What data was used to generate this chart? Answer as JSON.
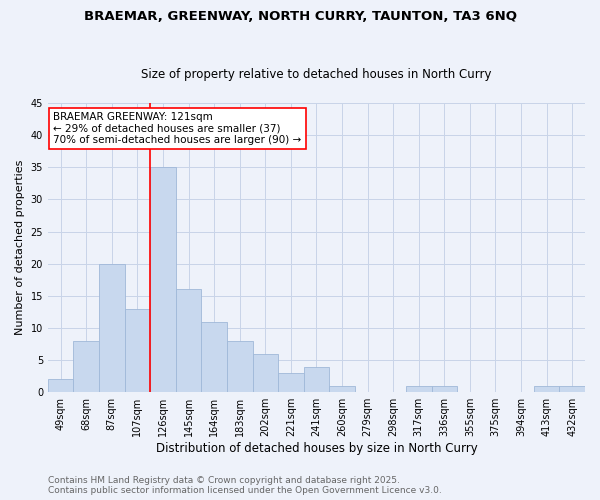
{
  "title_line1": "BRAEMAR, GREENWAY, NORTH CURRY, TAUNTON, TA3 6NQ",
  "title_line2": "Size of property relative to detached houses in North Curry",
  "xlabel": "Distribution of detached houses by size in North Curry",
  "ylabel": "Number of detached properties",
  "categories": [
    "49sqm",
    "68sqm",
    "87sqm",
    "107sqm",
    "126sqm",
    "145sqm",
    "164sqm",
    "183sqm",
    "202sqm",
    "221sqm",
    "241sqm",
    "260sqm",
    "279sqm",
    "298sqm",
    "317sqm",
    "336sqm",
    "355sqm",
    "375sqm",
    "394sqm",
    "413sqm",
    "432sqm"
  ],
  "values": [
    2,
    8,
    20,
    13,
    35,
    16,
    11,
    8,
    6,
    3,
    4,
    1,
    0,
    0,
    1,
    1,
    0,
    0,
    0,
    1,
    1
  ],
  "bar_color": "#c8d8ee",
  "bar_edge_color": "#a0b8d8",
  "vline_x": 4.0,
  "vline_color": "red",
  "annotation_text": "BRAEMAR GREENWAY: 121sqm\n← 29% of detached houses are smaller (37)\n70% of semi-detached houses are larger (90) →",
  "annotation_box_color": "white",
  "annotation_box_edge_color": "red",
  "ylim": [
    0,
    45
  ],
  "yticks": [
    0,
    5,
    10,
    15,
    20,
    25,
    30,
    35,
    40,
    45
  ],
  "grid_color": "#c8d4e8",
  "background_color": "#eef2fa",
  "footer_line1": "Contains HM Land Registry data © Crown copyright and database right 2025.",
  "footer_line2": "Contains public sector information licensed under the Open Government Licence v3.0.",
  "title_fontsize": 9.5,
  "subtitle_fontsize": 8.5,
  "xlabel_fontsize": 8.5,
  "ylabel_fontsize": 8,
  "tick_fontsize": 7,
  "annotation_fontsize": 7.5,
  "footer_fontsize": 6.5
}
